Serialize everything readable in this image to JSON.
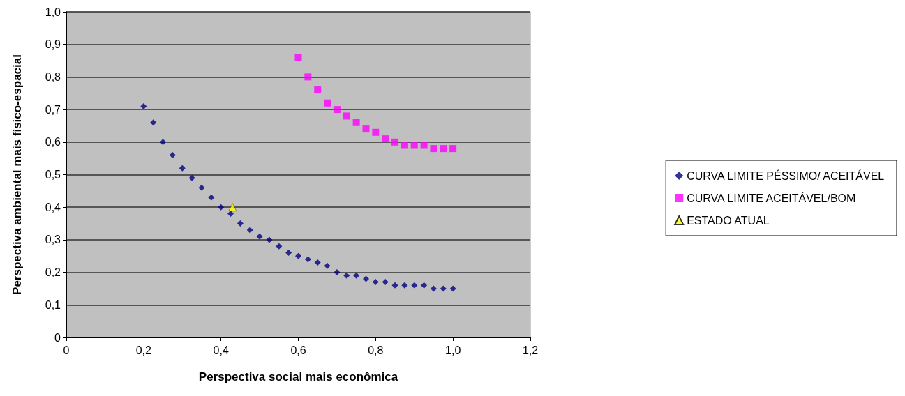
{
  "chart_data": {
    "type": "scatter",
    "xlabel": "Perspectiva social mais econômica",
    "ylabel": "Perspectiva ambiental mais físico-espacial",
    "xlim": [
      0,
      1.2
    ],
    "ylim": [
      0,
      1.0
    ],
    "xticks": [
      0,
      {
        "value": 0.2,
        "label": "0,2"
      },
      {
        "value": 0.4,
        "label": "0,4"
      },
      {
        "value": 0.6,
        "label": "0,6"
      },
      {
        "value": 0.8,
        "label": "0,8"
      },
      {
        "value": 1.0,
        "label": "1,0"
      },
      {
        "value": 1.2,
        "label": "1,2"
      }
    ],
    "yticks": [
      0,
      {
        "value": 0.1,
        "label": "0,1"
      },
      {
        "value": 0.2,
        "label": "0,2"
      },
      {
        "value": 0.3,
        "label": "0,3"
      },
      {
        "value": 0.4,
        "label": "0,4"
      },
      {
        "value": 0.5,
        "label": "0,5"
      },
      {
        "value": 0.6,
        "label": "0,6"
      },
      {
        "value": 0.7,
        "label": "0,7"
      },
      {
        "value": 0.8,
        "label": "0,8"
      },
      {
        "value": 0.9,
        "label": "0,9"
      },
      {
        "value": 1.0,
        "label": "1,0"
      }
    ],
    "grid": "y",
    "legend": "right",
    "series": [
      {
        "name": "CURVA LIMITE PÉSSIMO/ ACEITÁVEL",
        "color": "#000080",
        "marker": "diamond",
        "x": [
          0.2,
          0.225,
          0.25,
          0.275,
          0.3,
          0.325,
          0.35,
          0.375,
          0.4,
          0.425,
          0.45,
          0.475,
          0.5,
          0.525,
          0.55,
          0.575,
          0.6,
          0.625,
          0.65,
          0.675,
          0.7,
          0.725,
          0.75,
          0.775,
          0.8,
          0.825,
          0.85,
          0.875,
          0.9,
          0.925,
          0.95,
          0.975,
          1.0
        ],
        "values": [
          0.71,
          0.66,
          0.6,
          0.56,
          0.52,
          0.49,
          0.46,
          0.43,
          0.4,
          0.38,
          0.35,
          0.33,
          0.31,
          0.3,
          0.28,
          0.26,
          0.25,
          0.24,
          0.23,
          0.22,
          0.2,
          0.19,
          0.19,
          0.18,
          0.17,
          0.17,
          0.16,
          0.16,
          0.16,
          0.16,
          0.15,
          0.15,
          0.15
        ]
      },
      {
        "name": "CURVA LIMITE ACEITÁVEL/BOM",
        "color": "#ff00ff",
        "marker": "square",
        "x": [
          0.6,
          0.625,
          0.65,
          0.675,
          0.7,
          0.725,
          0.75,
          0.775,
          0.8,
          0.825,
          0.85,
          0.875,
          0.9,
          0.925,
          0.95,
          0.975,
          1.0
        ],
        "values": [
          0.86,
          0.8,
          0.76,
          0.72,
          0.7,
          0.68,
          0.66,
          0.64,
          0.63,
          0.61,
          0.6,
          0.59,
          0.59,
          0.59,
          0.58,
          0.58,
          0.58
        ]
      },
      {
        "name": "ESTADO ATUAL",
        "color": "#ffff00",
        "marker": "triangle",
        "x": [
          0.43
        ],
        "values": [
          0.4
        ]
      }
    ]
  }
}
